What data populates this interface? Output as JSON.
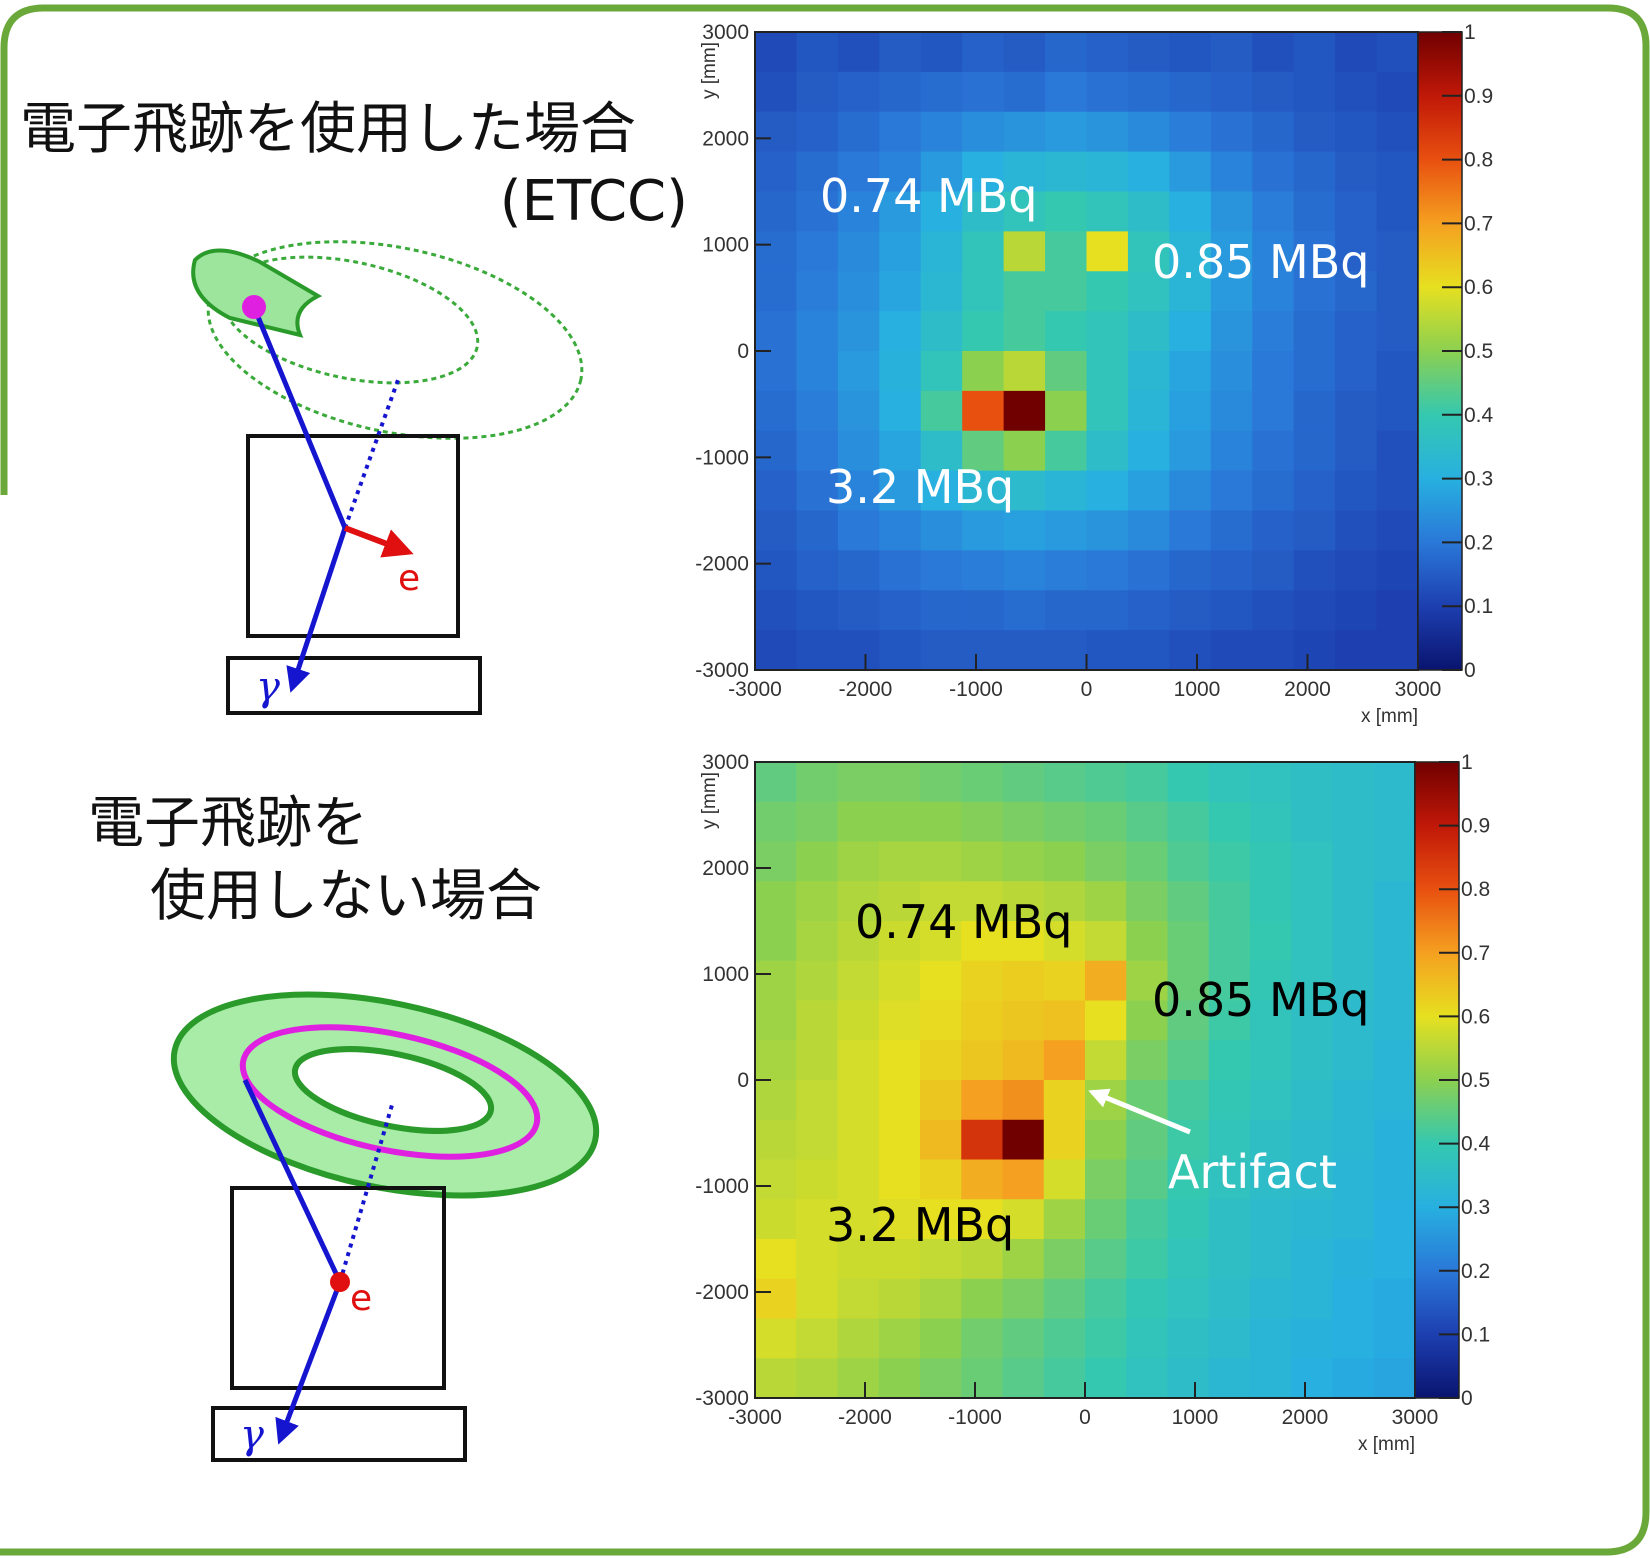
{
  "labels": {
    "with_track": "電子飛跡を使用した場合",
    "etcc": "(ETCC)",
    "without_track_1": "電子飛跡を",
    "without_track_2": "使用しない場合"
  },
  "diagrams": [
    {
      "electron": "e",
      "gamma": "γ"
    },
    {
      "electron": "e",
      "gamma": "γ"
    }
  ],
  "chart_data": [
    {
      "type": "heatmap",
      "xlabel": "x [mm]",
      "ylabel": "y [mm]",
      "xlim": [
        -3000,
        3000
      ],
      "ylim": [
        -3000,
        3000
      ],
      "xticks": [
        -3000,
        -2000,
        -1000,
        0,
        1000,
        2000,
        3000
      ],
      "yticks": [
        -3000,
        -2000,
        -1000,
        0,
        1000,
        2000,
        3000
      ],
      "zlim": [
        0,
        1
      ],
      "zticks": [
        0,
        0.1,
        0.2,
        0.3,
        0.4,
        0.5,
        0.6,
        0.7,
        0.8,
        0.9,
        1
      ],
      "colormap": [
        "#0a1470",
        "#1d3fb0",
        "#2a78d8",
        "#27b0e0",
        "#35c8b0",
        "#8cd050",
        "#e6e020",
        "#f5a020",
        "#e85010",
        "#c01808",
        "#700000"
      ],
      "annotations": [
        {
          "text": "0.74 MBq",
          "color": "#ffffff"
        },
        {
          "text": "0.85 MBq",
          "color": "#ffffff"
        },
        {
          "text": "3.2 MBq",
          "color": "#ffffff"
        }
      ],
      "values": [
        [
          0.12,
          0.14,
          0.13,
          0.15,
          0.14,
          0.16,
          0.15,
          0.17,
          0.16,
          0.15,
          0.14,
          0.15,
          0.13,
          0.14,
          0.12,
          0.13
        ],
        [
          0.13,
          0.15,
          0.16,
          0.17,
          0.18,
          0.19,
          0.18,
          0.2,
          0.19,
          0.18,
          0.17,
          0.16,
          0.15,
          0.14,
          0.13,
          0.12
        ],
        [
          0.15,
          0.16,
          0.18,
          0.2,
          0.22,
          0.24,
          0.25,
          0.26,
          0.25,
          0.23,
          0.21,
          0.19,
          0.17,
          0.15,
          0.14,
          0.13
        ],
        [
          0.16,
          0.18,
          0.2,
          0.22,
          0.26,
          0.3,
          0.32,
          0.33,
          0.32,
          0.3,
          0.26,
          0.22,
          0.19,
          0.17,
          0.15,
          0.14
        ],
        [
          0.17,
          0.19,
          0.22,
          0.26,
          0.3,
          0.35,
          0.38,
          0.4,
          0.38,
          0.35,
          0.3,
          0.25,
          0.21,
          0.18,
          0.16,
          0.14
        ],
        [
          0.18,
          0.2,
          0.23,
          0.27,
          0.32,
          0.38,
          0.55,
          0.42,
          0.6,
          0.38,
          0.32,
          0.26,
          0.22,
          0.19,
          0.16,
          0.15
        ],
        [
          0.18,
          0.21,
          0.24,
          0.28,
          0.33,
          0.38,
          0.42,
          0.42,
          0.4,
          0.37,
          0.32,
          0.26,
          0.22,
          0.19,
          0.17,
          0.15
        ],
        [
          0.19,
          0.22,
          0.25,
          0.3,
          0.35,
          0.4,
          0.42,
          0.4,
          0.38,
          0.35,
          0.3,
          0.25,
          0.21,
          0.18,
          0.16,
          0.15
        ],
        [
          0.19,
          0.22,
          0.26,
          0.31,
          0.38,
          0.5,
          0.55,
          0.45,
          0.38,
          0.33,
          0.28,
          0.24,
          0.2,
          0.18,
          0.16,
          0.14
        ],
        [
          0.18,
          0.21,
          0.25,
          0.3,
          0.42,
          0.8,
          1,
          0.5,
          0.38,
          0.32,
          0.27,
          0.23,
          0.2,
          0.17,
          0.15,
          0.14
        ],
        [
          0.17,
          0.2,
          0.24,
          0.28,
          0.35,
          0.45,
          0.5,
          0.42,
          0.35,
          0.3,
          0.26,
          0.22,
          0.19,
          0.17,
          0.15,
          0.13
        ],
        [
          0.16,
          0.19,
          0.22,
          0.26,
          0.3,
          0.33,
          0.34,
          0.32,
          0.3,
          0.27,
          0.23,
          0.2,
          0.18,
          0.16,
          0.14,
          0.13
        ],
        [
          0.15,
          0.17,
          0.2,
          0.22,
          0.24,
          0.26,
          0.27,
          0.26,
          0.25,
          0.23,
          0.2,
          0.18,
          0.16,
          0.15,
          0.13,
          0.12
        ],
        [
          0.14,
          0.16,
          0.17,
          0.19,
          0.2,
          0.21,
          0.22,
          0.21,
          0.2,
          0.19,
          0.17,
          0.16,
          0.15,
          0.13,
          0.12,
          0.11
        ],
        [
          0.13,
          0.14,
          0.15,
          0.16,
          0.17,
          0.17,
          0.18,
          0.17,
          0.17,
          0.16,
          0.15,
          0.14,
          0.13,
          0.12,
          0.11,
          0.1
        ],
        [
          0.12,
          0.13,
          0.13,
          0.14,
          0.15,
          0.15,
          0.15,
          0.15,
          0.14,
          0.14,
          0.13,
          0.12,
          0.12,
          0.11,
          0.1,
          0.1
        ]
      ]
    },
    {
      "type": "heatmap",
      "xlabel": "x [mm]",
      "ylabel": "y [mm]",
      "xlim": [
        -3000,
        3000
      ],
      "ylim": [
        -3000,
        3000
      ],
      "xticks": [
        -3000,
        -2000,
        -1000,
        0,
        1000,
        2000,
        3000
      ],
      "yticks": [
        -3000,
        -2000,
        -1000,
        0,
        1000,
        2000,
        3000
      ],
      "zlim": [
        0,
        1
      ],
      "zticks": [
        0,
        0.1,
        0.2,
        0.3,
        0.4,
        0.5,
        0.6,
        0.7,
        0.8,
        0.9,
        1
      ],
      "colormap": [
        "#0a1470",
        "#1d3fb0",
        "#2a78d8",
        "#27b0e0",
        "#35c8b0",
        "#8cd050",
        "#e6e020",
        "#f5a020",
        "#e85010",
        "#c01808",
        "#700000"
      ],
      "annotations": [
        {
          "text": "0.74 MBq",
          "color": "#000000"
        },
        {
          "text": "0.85 MBq",
          "color": "#000000"
        },
        {
          "text": "3.2 MBq",
          "color": "#000000"
        },
        {
          "text": "Artifact",
          "color": "#ffffff"
        }
      ],
      "values": [
        [
          0.45,
          0.47,
          0.48,
          0.48,
          0.47,
          0.46,
          0.45,
          0.44,
          0.43,
          0.42,
          0.4,
          0.38,
          0.37,
          0.36,
          0.35,
          0.34
        ],
        [
          0.47,
          0.48,
          0.5,
          0.5,
          0.5,
          0.49,
          0.48,
          0.47,
          0.46,
          0.44,
          0.42,
          0.4,
          0.38,
          0.36,
          0.35,
          0.34
        ],
        [
          0.48,
          0.5,
          0.52,
          0.53,
          0.53,
          0.52,
          0.51,
          0.5,
          0.48,
          0.46,
          0.43,
          0.41,
          0.39,
          0.37,
          0.35,
          0.34
        ],
        [
          0.5,
          0.52,
          0.54,
          0.55,
          0.56,
          0.56,
          0.55,
          0.54,
          0.52,
          0.48,
          0.45,
          0.42,
          0.39,
          0.37,
          0.35,
          0.33
        ],
        [
          0.5,
          0.53,
          0.55,
          0.57,
          0.58,
          0.6,
          0.6,
          0.58,
          0.56,
          0.5,
          0.46,
          0.42,
          0.4,
          0.37,
          0.35,
          0.33
        ],
        [
          0.52,
          0.54,
          0.56,
          0.58,
          0.6,
          0.62,
          0.63,
          0.62,
          0.68,
          0.52,
          0.46,
          0.42,
          0.39,
          0.37,
          0.35,
          0.33
        ],
        [
          0.52,
          0.55,
          0.57,
          0.59,
          0.61,
          0.63,
          0.64,
          0.65,
          0.6,
          0.5,
          0.45,
          0.41,
          0.38,
          0.36,
          0.34,
          0.33
        ],
        [
          0.53,
          0.55,
          0.58,
          0.6,
          0.62,
          0.64,
          0.66,
          0.7,
          0.56,
          0.48,
          0.44,
          0.4,
          0.38,
          0.36,
          0.34,
          0.32
        ],
        [
          0.54,
          0.56,
          0.58,
          0.6,
          0.64,
          0.7,
          0.72,
          0.62,
          0.52,
          0.46,
          0.42,
          0.39,
          0.37,
          0.35,
          0.33,
          0.32
        ],
        [
          0.55,
          0.56,
          0.58,
          0.6,
          0.66,
          0.85,
          1,
          0.62,
          0.5,
          0.45,
          0.41,
          0.38,
          0.36,
          0.34,
          0.33,
          0.31
        ],
        [
          0.56,
          0.57,
          0.58,
          0.6,
          0.62,
          0.68,
          0.7,
          0.58,
          0.48,
          0.44,
          0.4,
          0.37,
          0.35,
          0.34,
          0.32,
          0.31
        ],
        [
          0.57,
          0.58,
          0.58,
          0.59,
          0.6,
          0.6,
          0.58,
          0.52,
          0.46,
          0.42,
          0.39,
          0.36,
          0.34,
          0.33,
          0.32,
          0.3
        ],
        [
          0.6,
          0.58,
          0.57,
          0.57,
          0.56,
          0.55,
          0.52,
          0.48,
          0.44,
          0.41,
          0.38,
          0.36,
          0.34,
          0.32,
          0.31,
          0.3
        ],
        [
          0.62,
          0.58,
          0.56,
          0.55,
          0.53,
          0.5,
          0.48,
          0.45,
          0.42,
          0.39,
          0.37,
          0.35,
          0.33,
          0.32,
          0.3,
          0.29
        ],
        [
          0.58,
          0.56,
          0.54,
          0.52,
          0.5,
          0.47,
          0.45,
          0.43,
          0.41,
          0.38,
          0.36,
          0.34,
          0.32,
          0.31,
          0.3,
          0.29
        ],
        [
          0.55,
          0.54,
          0.52,
          0.5,
          0.48,
          0.46,
          0.44,
          0.42,
          0.4,
          0.37,
          0.35,
          0.33,
          0.32,
          0.3,
          0.29,
          0.28
        ]
      ]
    }
  ]
}
